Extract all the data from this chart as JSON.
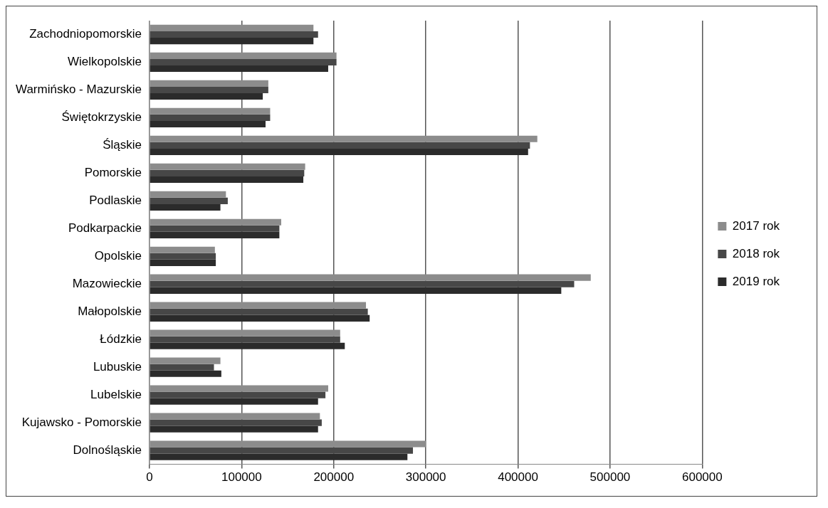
{
  "chart_data": {
    "type": "bar",
    "orientation": "horizontal",
    "categories": [
      "Zachodniopomorskie",
      "Wielkopolskie",
      "Warmińsko - Mazurskie",
      "Świętokrzyskie",
      "Śląskie",
      "Pomorskie",
      "Podlaskie",
      "Podkarpackie",
      "Opolskie",
      "Mazowieckie",
      "Małopolskie",
      "Łódzkie",
      "Lubuskie",
      "Lubelskie",
      "Kujawsko - Pomorskie",
      "Dolnośląskie"
    ],
    "series": [
      {
        "name": "2017 rok",
        "color": "#8c8c8c",
        "values": [
          178000,
          203000,
          129000,
          131000,
          421000,
          169000,
          83000,
          143000,
          71000,
          479000,
          235000,
          207000,
          77000,
          194000,
          185000,
          300000
        ]
      },
      {
        "name": "2018 rok",
        "color": "#474747",
        "values": [
          183000,
          203000,
          129000,
          131000,
          413000,
          168000,
          85000,
          141000,
          72000,
          461000,
          237000,
          207000,
          70000,
          191000,
          187000,
          286000
        ]
      },
      {
        "name": "2019 rok",
        "color": "#2b2b2b",
        "values": [
          178000,
          194000,
          123000,
          126000,
          411000,
          167000,
          77000,
          141000,
          72000,
          447000,
          239000,
          212000,
          78000,
          183000,
          183000,
          280000
        ]
      }
    ],
    "xlim": [
      0,
      600000
    ],
    "xticks": [
      0,
      100000,
      200000,
      300000,
      400000,
      500000,
      600000
    ],
    "grid": "x",
    "legend": "right"
  }
}
